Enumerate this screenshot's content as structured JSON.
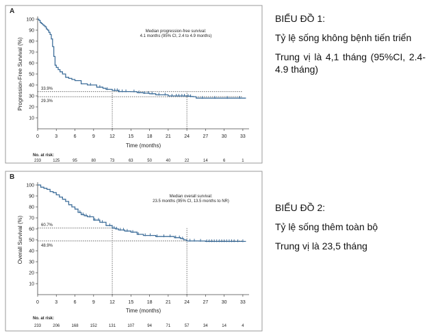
{
  "chart_data": [
    {
      "type": "line",
      "panel_label": "A",
      "title": "Median progression-free survival:",
      "subtitle": "4.1 months (95% CI, 2.4 to 4.9 months)",
      "xlabel": "Time (months)",
      "ylabel": "Progression-Free Survival (%)",
      "xlim": [
        0,
        34
      ],
      "ylim": [
        0,
        100
      ],
      "xticks": [
        0,
        3,
        6,
        9,
        12,
        15,
        18,
        21,
        24,
        27,
        30,
        33
      ],
      "yticks": [
        10,
        20,
        30,
        40,
        50,
        60,
        70,
        80,
        90,
        100
      ],
      "series": [
        {
          "name": "PFS",
          "x": [
            0,
            0.2,
            0.4,
            0.6,
            0.8,
            1.0,
            1.2,
            1.4,
            1.6,
            1.8,
            2.0,
            2.2,
            2.4,
            2.6,
            2.8,
            3.0,
            3.3,
            3.6,
            4.0,
            4.5,
            5.0,
            5.5,
            6.0,
            7.0,
            8.0,
            9.0,
            9.5,
            10.5,
            11.0,
            12.0,
            13.0,
            14.0,
            15.0,
            16.0,
            17.0,
            18.0,
            19.0,
            20.0,
            21.0,
            22.0,
            24.0,
            24.5,
            25.0,
            25.5,
            26.0,
            28.0,
            30.0,
            33.5
          ],
          "y": [
            100,
            99,
            97,
            96,
            95,
            94,
            93,
            91,
            90,
            88,
            86,
            82,
            75,
            66,
            58,
            56,
            54,
            52,
            50,
            47,
            46,
            45,
            44,
            41,
            40,
            40,
            38,
            37,
            36,
            35,
            34,
            34,
            33.9,
            33,
            32.5,
            32,
            31,
            31,
            30,
            30,
            29.8,
            29.5,
            29.3,
            28,
            28,
            28,
            28,
            28
          ]
        }
      ],
      "censor_marks_x": [
        8.5,
        10,
        11.2,
        12.4,
        12.8,
        13.1,
        13.6,
        14.2,
        15.5,
        16.3,
        17.2,
        17.8,
        18.4,
        19.5,
        20.5,
        21.6,
        22.3,
        22.7,
        23.2,
        23.6,
        24.2,
        24.6,
        26.5,
        28.5,
        30.5,
        32.5
      ],
      "reference_lines": [
        {
          "value_text": "33.9%",
          "y": 33.9,
          "x_end": 33
        },
        {
          "value_text": "29.3%",
          "y": 29.3,
          "x_end": 33
        }
      ],
      "vertical_lines_x": [
        12,
        24
      ],
      "risk_table": {
        "label": "No. at risk:",
        "times": [
          0,
          3,
          6,
          9,
          12,
          15,
          18,
          21,
          24,
          27,
          30,
          33
        ],
        "values": [
          "233",
          "125",
          "95",
          "80",
          "73",
          "63",
          "50",
          "40",
          "22",
          "14",
          "6",
          "1"
        ]
      }
    },
    {
      "type": "line",
      "panel_label": "B",
      "title": "Median overall survival:",
      "subtitle": "23.5 months (95% CI, 13.5 months to NR)",
      "xlabel": "Time (months)",
      "ylabel": "Overall Survival (%)",
      "xlim": [
        0,
        34
      ],
      "ylim": [
        0,
        100
      ],
      "xticks": [
        0,
        3,
        6,
        9,
        12,
        15,
        18,
        21,
        24,
        27,
        30,
        33
      ],
      "yticks": [
        10,
        20,
        30,
        40,
        50,
        60,
        70,
        80,
        90,
        100
      ],
      "series": [
        {
          "name": "OS",
          "x": [
            0,
            0.5,
            1.0,
            1.5,
            2.0,
            2.5,
            3.0,
            3.5,
            4.0,
            4.5,
            5.0,
            5.5,
            6.0,
            6.5,
            7.0,
            7.5,
            8.0,
            9.0,
            10.0,
            11.0,
            12.0,
            12.5,
            13.0,
            14.0,
            15.0,
            16.0,
            17.0,
            18.0,
            19.0,
            20.0,
            21.0,
            22.0,
            23.0,
            23.5,
            24.0,
            25.0,
            26.0,
            27.0,
            30.0,
            33.5
          ],
          "y": [
            100,
            98,
            97,
            96,
            94,
            93,
            91,
            89,
            87,
            85,
            82,
            80,
            78,
            75,
            73,
            72,
            71,
            68,
            66,
            63,
            60.7,
            60,
            59,
            58,
            57,
            55,
            54,
            54,
            53,
            53,
            53,
            52,
            51,
            50,
            49,
            49,
            48.9,
            48.5,
            48.5,
            48.5
          ]
        }
      ],
      "censor_marks_x": [
        6.8,
        7.3,
        7.8,
        8.4,
        9.2,
        9.8,
        10.4,
        11.6,
        12.3,
        12.7,
        13.3,
        13.8,
        14.4,
        15.3,
        16.2,
        17.3,
        18.1,
        19.2,
        20.3,
        21.3,
        22.2,
        22.8,
        23.3,
        24.5,
        25.2,
        26.2,
        27.2,
        27.6,
        28,
        28.4,
        28.8,
        29.2,
        29.6,
        30,
        30.4,
        30.8,
        31.2,
        31.6,
        32.2,
        33
      ],
      "reference_lines": [
        {
          "value_text": "60.7%",
          "y": 60.7,
          "x_end": 12
        },
        {
          "value_text": "48.9%",
          "y": 48.9,
          "x_end": 33
        }
      ],
      "vertical_lines_x": [
        12,
        24
      ],
      "risk_table": {
        "label": "No. at risk:",
        "times": [
          0,
          3,
          6,
          9,
          12,
          15,
          18,
          21,
          24,
          27,
          30,
          33
        ],
        "values": [
          "233",
          "206",
          "168",
          "152",
          "131",
          "107",
          "94",
          "71",
          "57",
          "34",
          "14",
          "4"
        ]
      }
    }
  ],
  "side_text": {
    "chart1_heading": "BIỂU ĐỒ 1:",
    "chart1_line1": "Tỷ lệ sống không bệnh tiến triển",
    "chart1_line2": "Trung vị là 4,1 tháng (95%CI, 2.4-4.9 tháng)",
    "chart2_heading": "BIỂU ĐỒ 2:",
    "chart2_line1": "Tỷ lệ sống thêm toàn bộ",
    "chart2_line2": "Trung vị là 23,5 tháng"
  },
  "colors": {
    "curve": "#3d6d99",
    "frame": "#999999",
    "axis": "#444444",
    "dotted": "#333333"
  }
}
